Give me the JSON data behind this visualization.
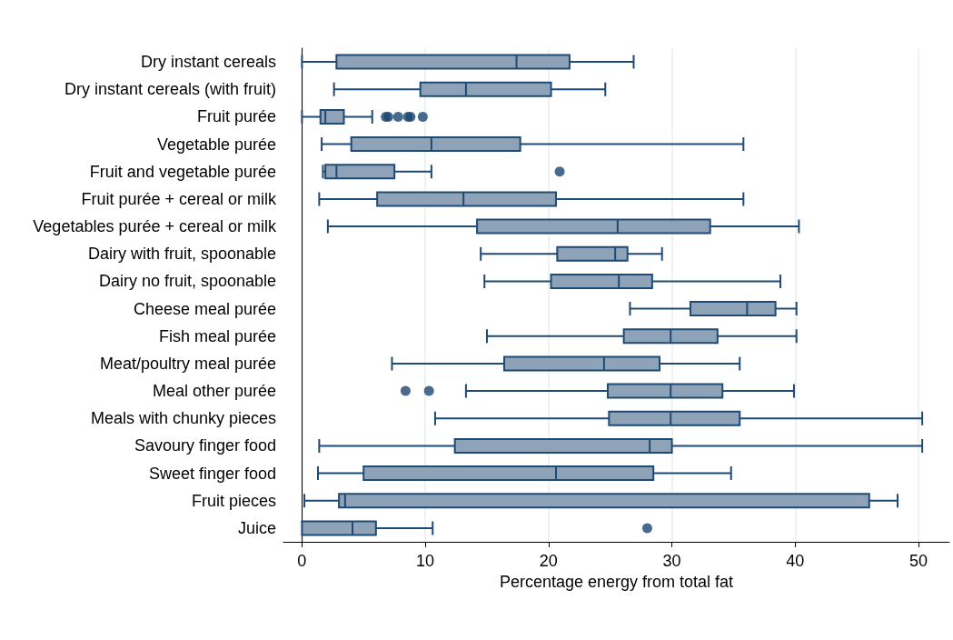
{
  "chart_data": {
    "type": "box",
    "orientation": "horizontal",
    "xlabel": "Percentage energy from total fat",
    "xlim": [
      -1.5,
      52.5
    ],
    "xticks": [
      0,
      10,
      20,
      30,
      40,
      50
    ],
    "grid": "x",
    "color": "#8ea3b8",
    "categories": [
      "Dry instant cereals",
      "Dry instant cereals (with fruit)",
      "Fruit purée",
      "Vegetable purée",
      "Fruit and vegetable purée",
      "Fruit purée + cereal or milk",
      "Vegetables purée + cereal or milk",
      "Dairy with fruit, spoonable",
      "Dairy no fruit, spoonable",
      "Cheese meal purée",
      "Fish meal purée",
      "Meat/poultry meal purée",
      "Meal other purée",
      "Meals with chunky pieces",
      "Savoury finger food",
      "Sweet finger food",
      "Fruit pieces",
      "Juice"
    ],
    "boxes": [
      {
        "low": 0,
        "q1": 2.8,
        "median": 17.4,
        "q3": 21.7,
        "high": 26.9
      },
      {
        "low": 2.6,
        "q1": 9.6,
        "median": 13.3,
        "q3": 20.2,
        "high": 24.6
      },
      {
        "low": 0,
        "q1": 1.5,
        "median": 1.9,
        "q3": 3.4,
        "high": 5.7,
        "outliers": [
          6.8,
          7.0,
          7.8,
          8.6,
          8.8,
          9.8
        ]
      },
      {
        "low": 1.6,
        "q1": 4.0,
        "median": 10.5,
        "q3": 17.7,
        "high": 35.8
      },
      {
        "low": 1.7,
        "q1": 1.9,
        "median": 2.8,
        "q3": 7.5,
        "high": 10.5,
        "outliers": [
          20.9
        ]
      },
      {
        "low": 1.4,
        "q1": 6.1,
        "median": 13.1,
        "q3": 20.6,
        "high": 35.8
      },
      {
        "low": 2.1,
        "q1": 14.2,
        "median": 25.6,
        "q3": 33.1,
        "high": 40.3
      },
      {
        "low": 14.5,
        "q1": 20.7,
        "median": 25.4,
        "q3": 26.4,
        "high": 29.2
      },
      {
        "low": 14.8,
        "q1": 20.2,
        "median": 25.7,
        "q3": 28.4,
        "high": 38.8
      },
      {
        "low": 26.6,
        "q1": 31.5,
        "median": 36.1,
        "q3": 38.4,
        "high": 40.1
      },
      {
        "low": 15.0,
        "q1": 26.1,
        "median": 29.9,
        "q3": 33.7,
        "high": 40.1
      },
      {
        "low": 7.3,
        "q1": 16.4,
        "median": 24.5,
        "q3": 29.0,
        "high": 35.5
      },
      {
        "low": 13.3,
        "q1": 24.8,
        "median": 29.9,
        "q3": 34.1,
        "high": 39.9,
        "outliers": [
          8.4,
          10.3
        ]
      },
      {
        "low": 10.8,
        "q1": 24.9,
        "median": 29.9,
        "q3": 35.5,
        "high": 50.3
      },
      {
        "low": 1.4,
        "q1": 12.4,
        "median": 28.2,
        "q3": 30.0,
        "high": 50.3
      },
      {
        "low": 1.3,
        "q1": 5.0,
        "median": 20.6,
        "q3": 28.5,
        "high": 34.8
      },
      {
        "low": 0.2,
        "q1": 3.0,
        "median": 3.5,
        "q3": 46.0,
        "high": 48.3
      },
      {
        "low": 0,
        "q1": 0,
        "median": 4.1,
        "q3": 6.0,
        "high": 10.6,
        "outliers": [
          28.0
        ]
      }
    ]
  }
}
